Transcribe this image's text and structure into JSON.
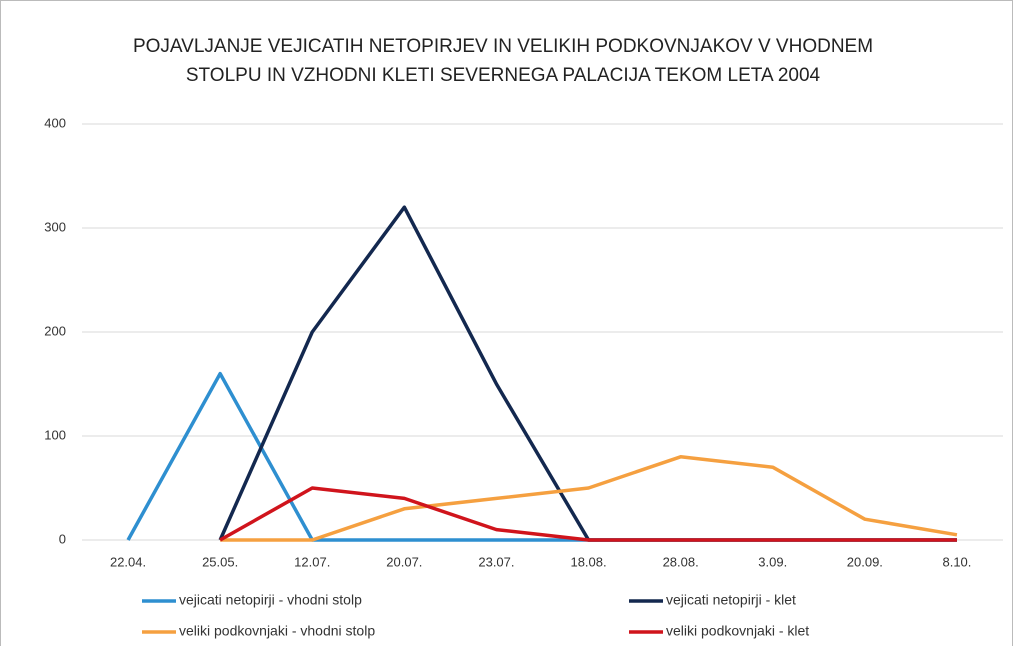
{
  "chart_data": {
    "type": "line",
    "title": [
      "POJAVLJANJE VEJICATIH NETOPIRJEV IN VELIKIH PODKOVNJAKOV V VHODNEM",
      "STOLPU IN VZHODNI KLETI SEVERNEGA PALACIJA TEKOM LETA 2004"
    ],
    "categories": [
      "22.04.",
      "25.05.",
      "12.07.",
      "20.07.",
      "23.07.",
      "18.08.",
      "28.08.",
      "3.09.",
      "20.09.",
      "8.10."
    ],
    "series": [
      {
        "name": "vejicati netopirji - vhodni stolp",
        "color": "#2e8fd0",
        "values": [
          0,
          160,
          0,
          0,
          0,
          0,
          0,
          0,
          0,
          0
        ]
      },
      {
        "name": "vejicati netopirji - klet",
        "color": "#13284f",
        "values": [
          null,
          0,
          200,
          320,
          150,
          0,
          0,
          0,
          0,
          0
        ]
      },
      {
        "name": "veliki podkovnjaki - vhodni stolp",
        "color": "#f5a040",
        "values": [
          null,
          0,
          0,
          30,
          40,
          50,
          80,
          70,
          20,
          5
        ]
      },
      {
        "name": "veliki podkovnjaki - klet",
        "color": "#d0141c",
        "values": [
          null,
          0,
          50,
          40,
          10,
          0,
          0,
          0,
          0,
          0
        ]
      }
    ],
    "ylim": [
      0,
      400
    ],
    "yticks": [
      0,
      100,
      200,
      300,
      400
    ],
    "grid": true
  }
}
